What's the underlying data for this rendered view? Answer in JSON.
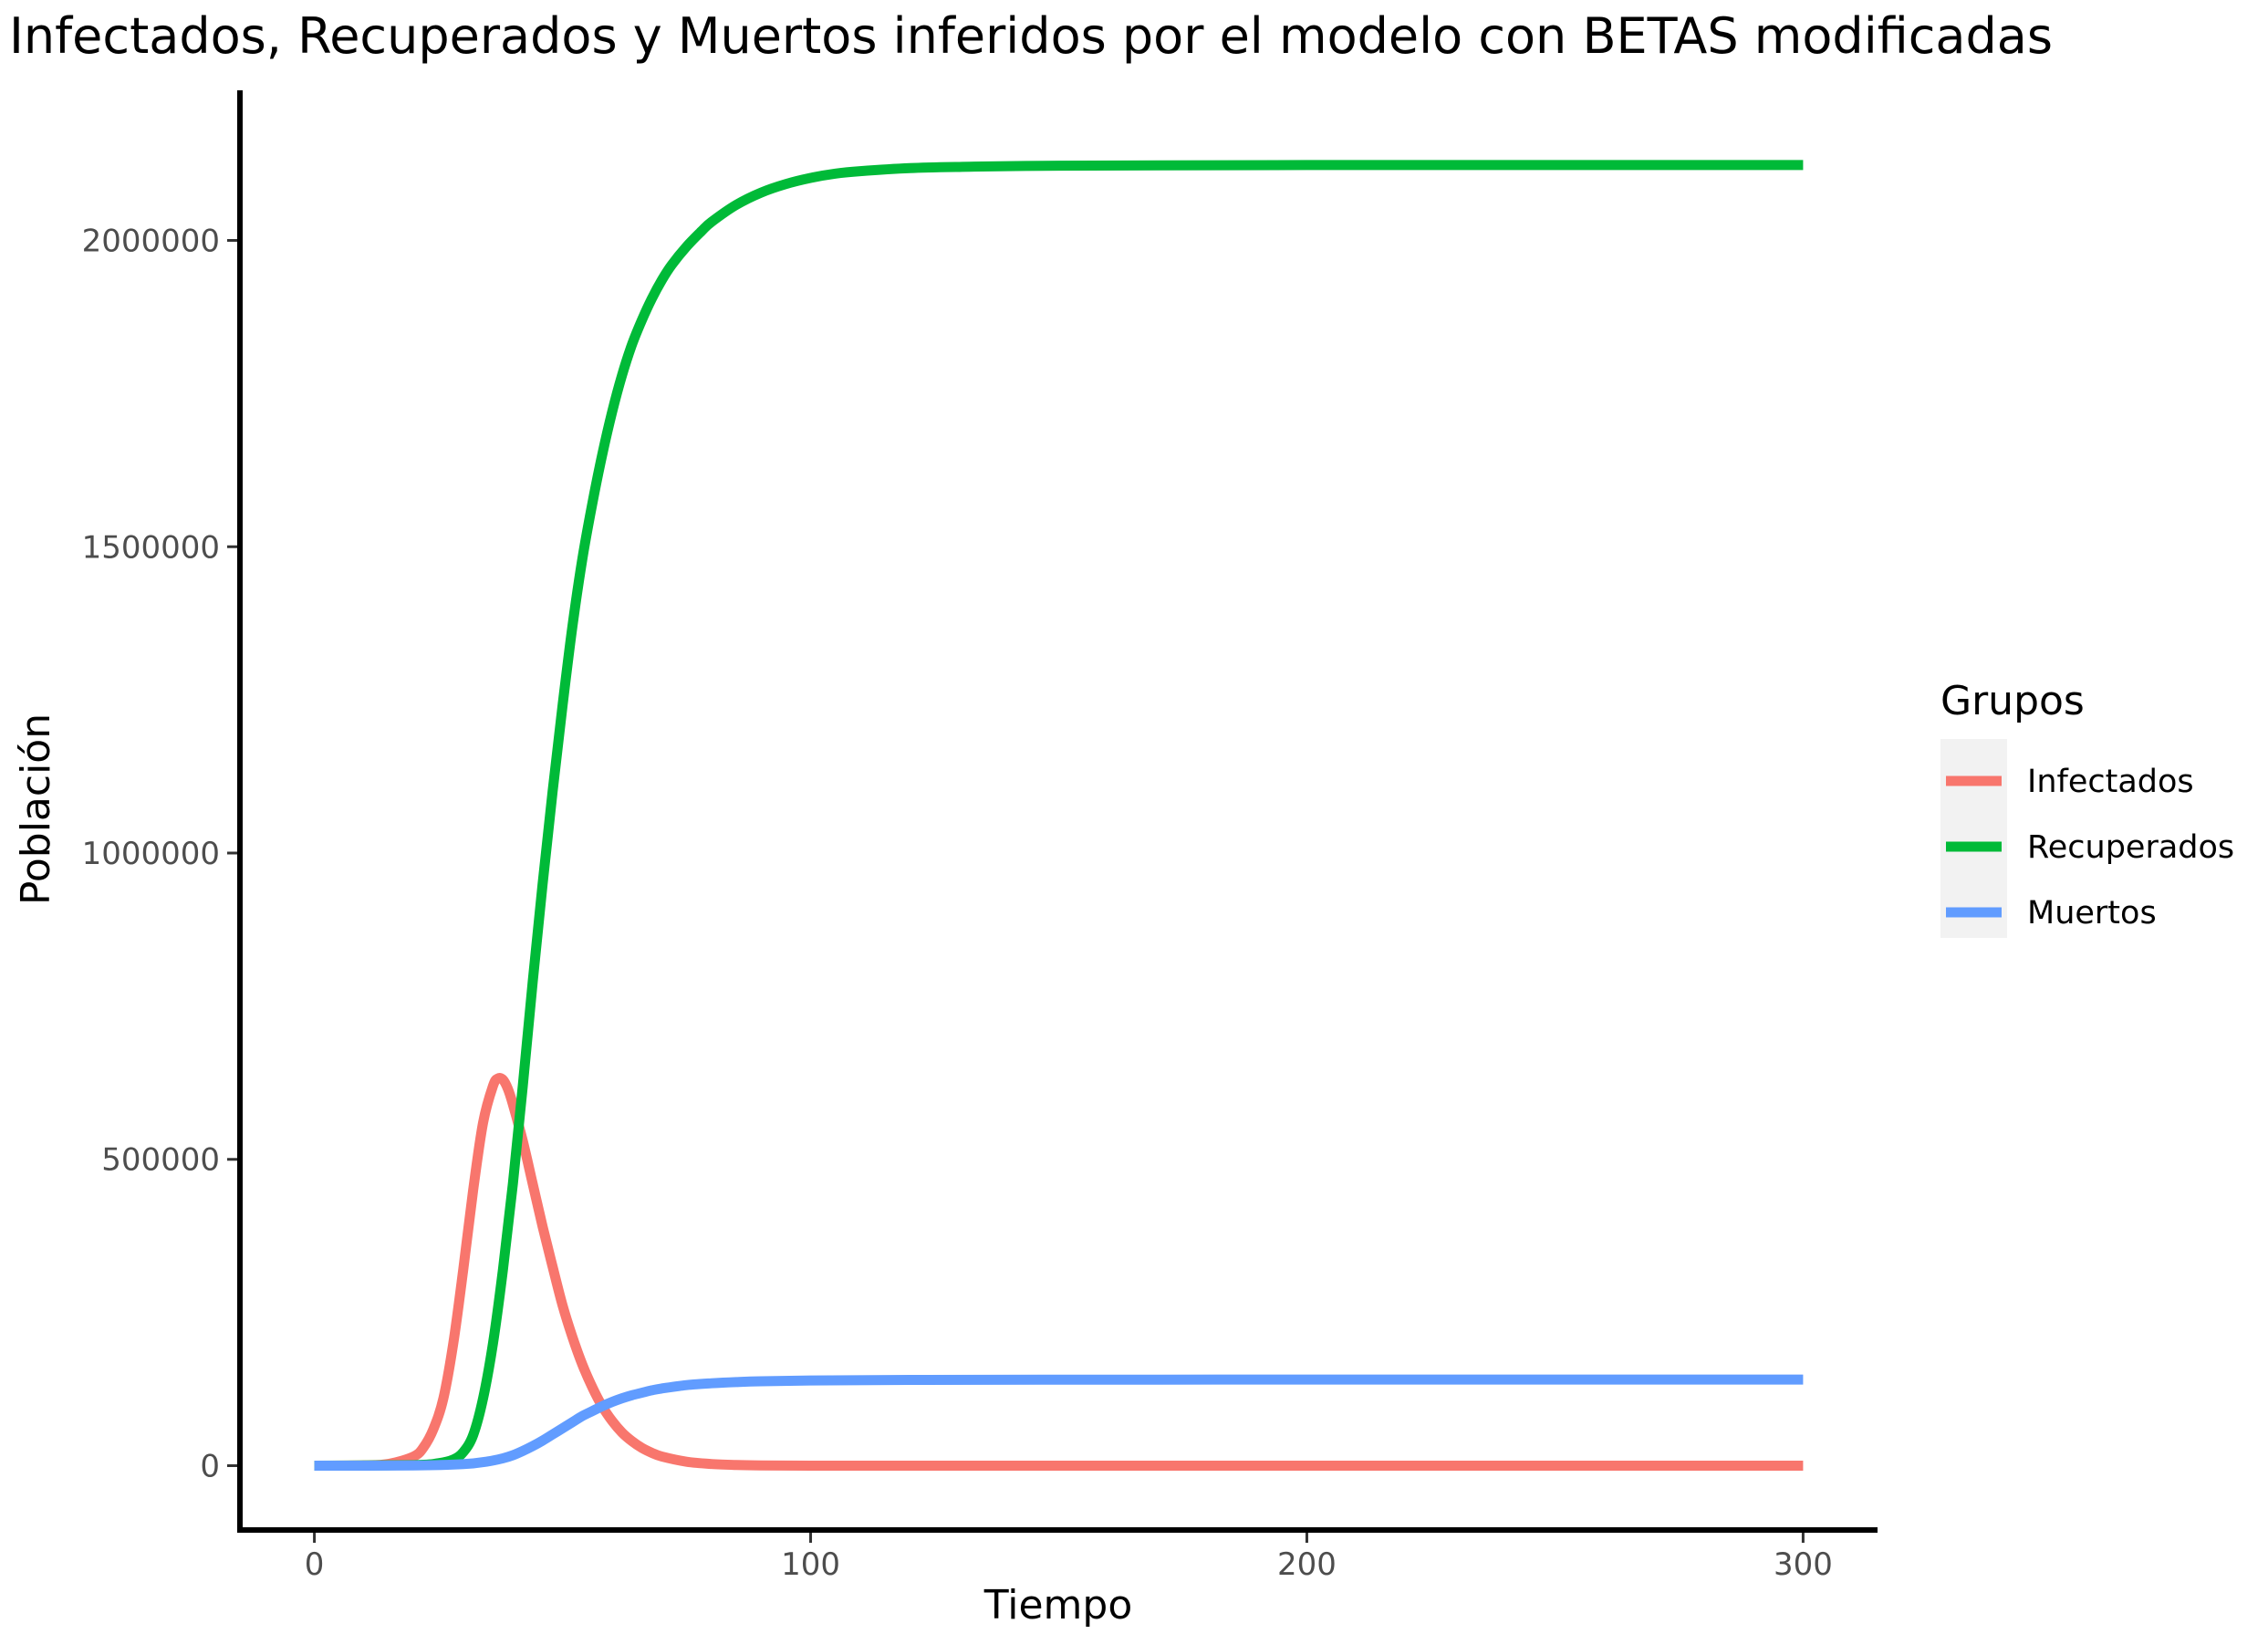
{
  "chart_data": {
    "type": "line",
    "title": "Infectados, Recuperados y Muertos inferidos por el modelo con BETAS modificadas",
    "xlabel": "Tiempo",
    "ylabel": "Población",
    "xlim": [
      -15,
      315
    ],
    "ylim": [
      -105000,
      2245000
    ],
    "x_ticks": [
      0,
      100,
      200,
      300
    ],
    "x_tick_labels": [
      "0",
      "100",
      "200",
      "300"
    ],
    "y_ticks": [
      0,
      500000,
      1000000,
      1500000,
      2000000
    ],
    "y_tick_labels": [
      "0",
      "500000",
      "1000000",
      "1500000",
      "2000000"
    ],
    "grid": false,
    "legend": {
      "title": "Grupos",
      "position": "right"
    },
    "series": [
      {
        "name": "Infectados",
        "color": "#F8766D",
        "x": [
          0,
          10,
          15,
          20,
          22,
          24,
          26,
          28,
          30,
          32,
          34,
          36,
          37,
          38,
          39,
          40,
          42,
          44,
          46,
          48,
          50,
          52,
          54,
          56,
          58,
          60,
          62,
          64,
          66,
          68,
          70,
          75,
          80,
          85,
          90,
          100,
          120,
          150,
          200,
          250,
          300
        ],
        "y": [
          0,
          500,
          3000,
          15000,
          30000,
          60000,
          110000,
          200000,
          320000,
          450000,
          560000,
          620000,
          632000,
          630000,
          615000,
          590000,
          530000,
          460000,
          390000,
          325000,
          262000,
          210000,
          165000,
          128000,
          97000,
          73000,
          54000,
          40000,
          29000,
          21000,
          15000,
          6500,
          2700,
          1100,
          450,
          80,
          5,
          0,
          0,
          0,
          0
        ]
      },
      {
        "name": "Recuperados",
        "color": "#00BA38",
        "x": [
          0,
          20,
          25,
          28,
          30,
          32,
          34,
          36,
          38,
          40,
          42,
          44,
          46,
          48,
          50,
          52,
          54,
          56,
          58,
          60,
          62,
          64,
          66,
          68,
          70,
          72,
          75,
          78,
          80,
          85,
          90,
          95,
          100,
          105,
          110,
          120,
          130,
          150,
          200,
          250,
          300
        ],
        "y": [
          0,
          1000,
          4000,
          10000,
          22000,
          50000,
          110000,
          200000,
          320000,
          460000,
          620000,
          790000,
          950000,
          1100000,
          1240000,
          1370000,
          1480000,
          1570000,
          1650000,
          1720000,
          1780000,
          1830000,
          1870000,
          1905000,
          1935000,
          1960000,
          1990000,
          2015000,
          2030000,
          2058000,
          2078000,
          2092000,
          2102000,
          2109000,
          2113000,
          2118000,
          2120000,
          2122000,
          2123000,
          2123000,
          2123000
        ]
      },
      {
        "name": "Muertos",
        "color": "#619CFF",
        "x": [
          0,
          20,
          30,
          35,
          38,
          40,
          42,
          44,
          46,
          48,
          50,
          52,
          54,
          56,
          58,
          60,
          62,
          64,
          66,
          68,
          70,
          75,
          80,
          85,
          90,
          100,
          120,
          150,
          200,
          250,
          300
        ],
        "y": [
          0,
          300,
          2500,
          7000,
          12000,
          17000,
          24000,
          32000,
          41000,
          51000,
          61000,
          71000,
          81000,
          89000,
          97000,
          104000,
          110000,
          115000,
          119000,
          123000,
          126000,
          131500,
          134500,
          136500,
          137800,
          139000,
          140000,
          140300,
          140500,
          140500,
          140500
        ]
      }
    ]
  }
}
